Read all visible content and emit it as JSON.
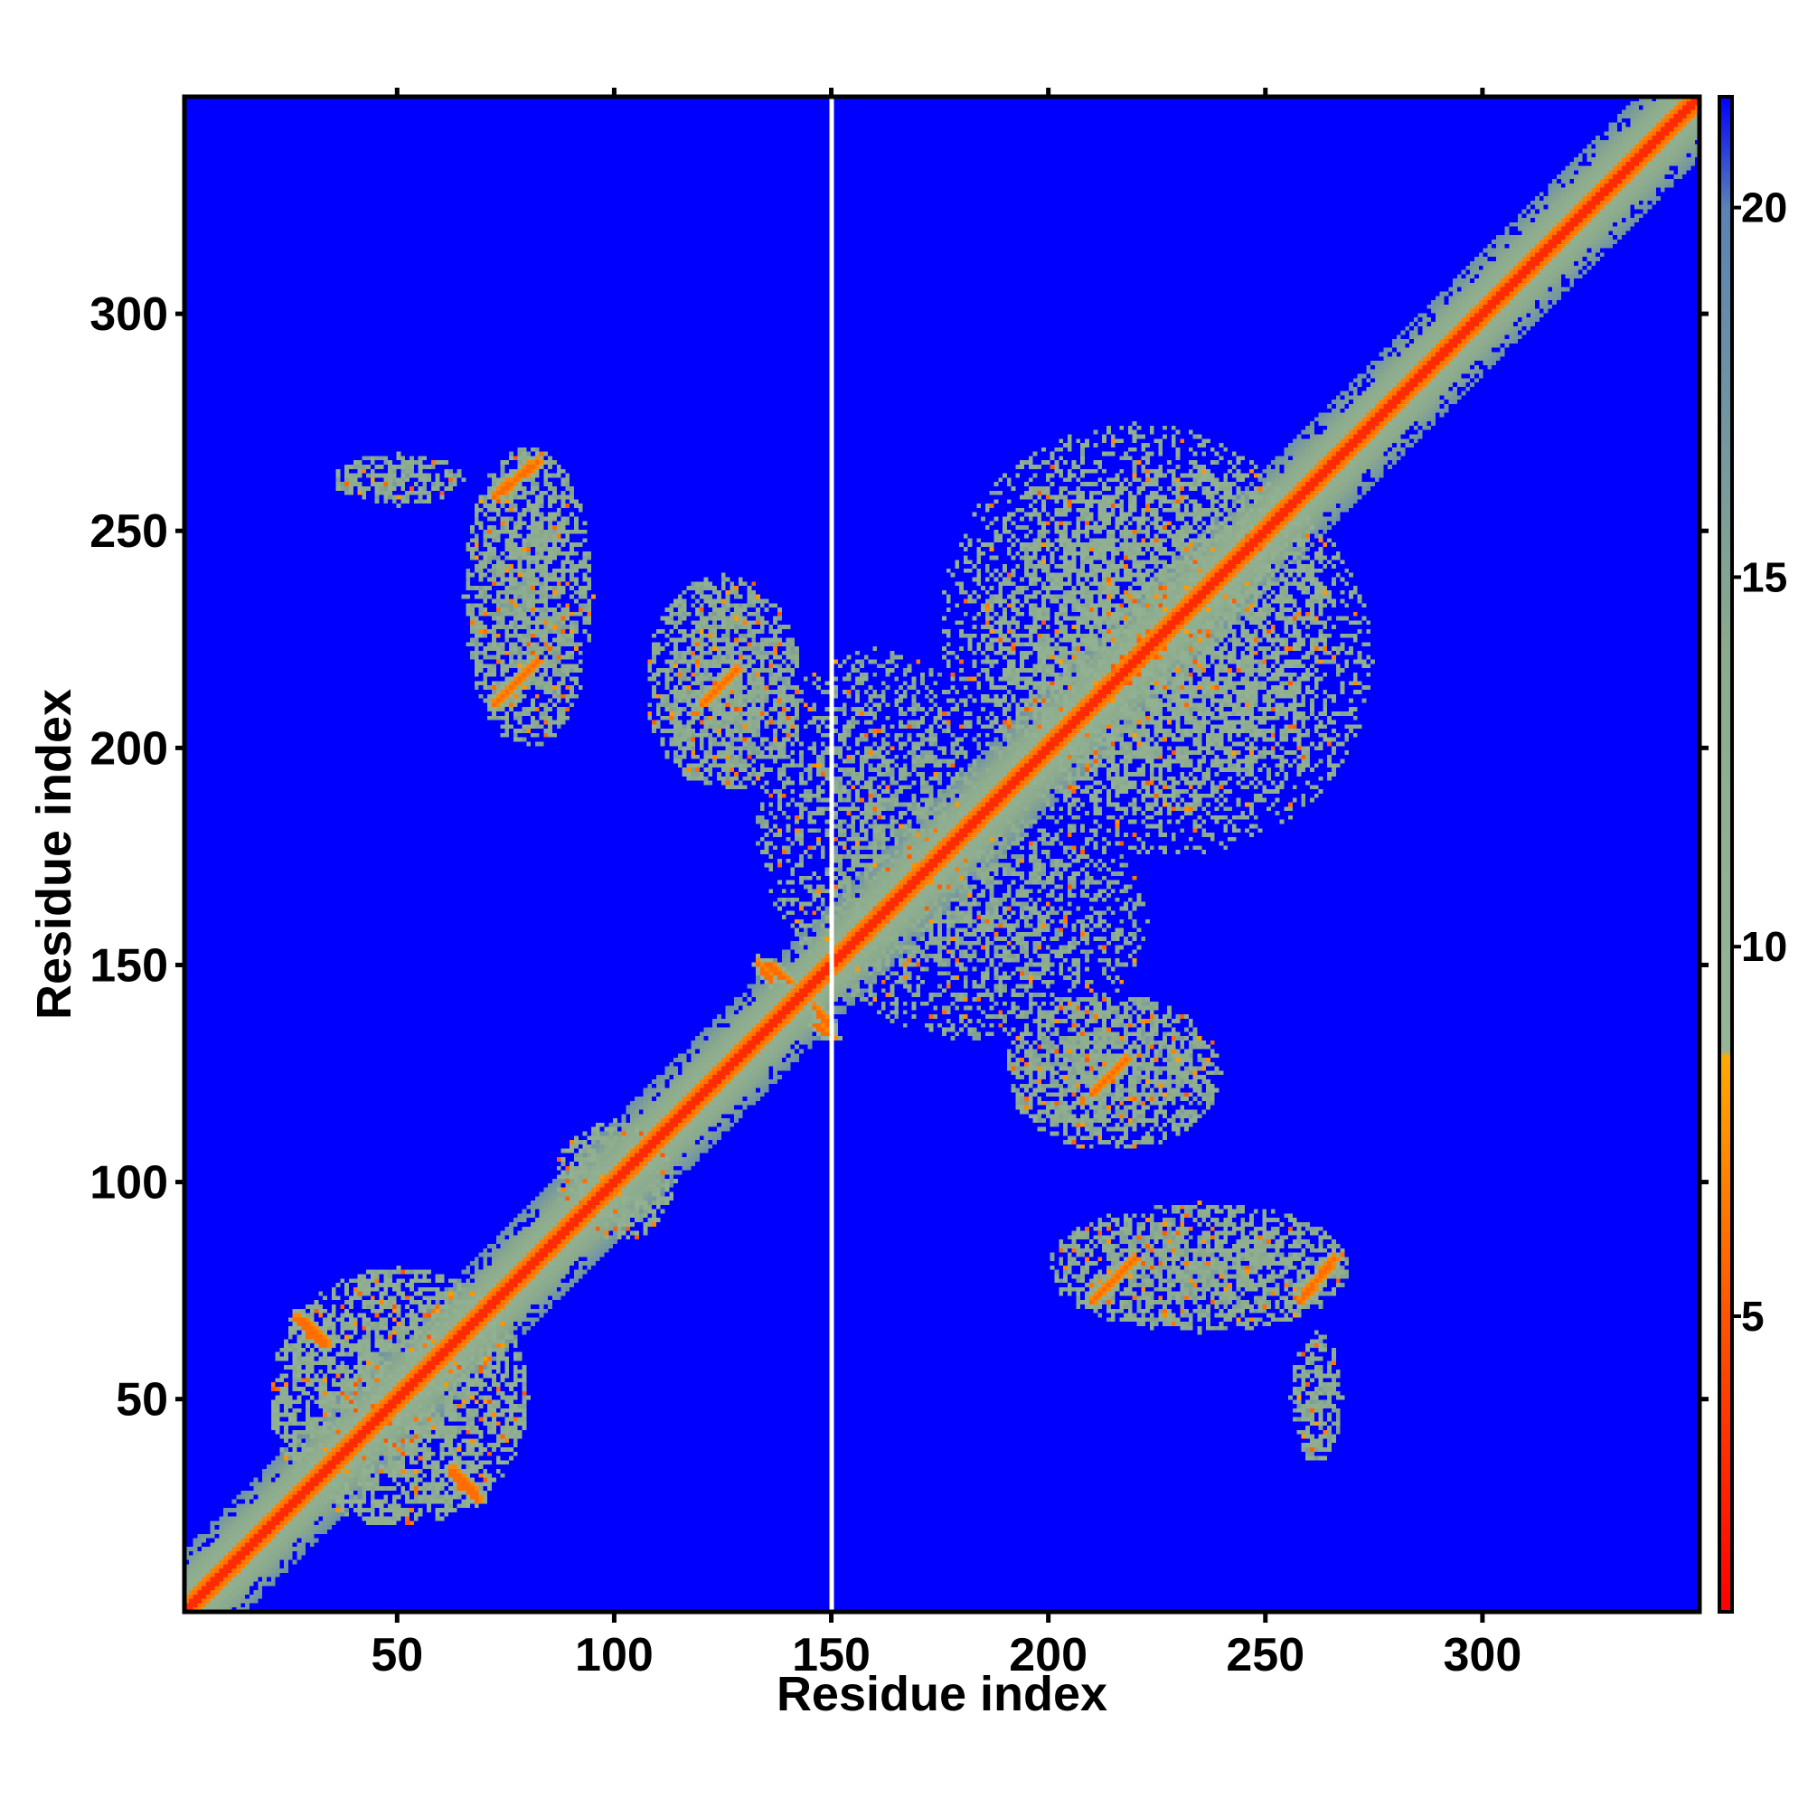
{
  "chart_data": {
    "type": "heatmap",
    "title": "",
    "xlabel": "Residue index",
    "ylabel": "Residue index",
    "xlim": [
      1,
      350
    ],
    "ylim": [
      1,
      350
    ],
    "xticks": [
      50,
      100,
      150,
      200,
      250,
      300
    ],
    "yticks": [
      50,
      100,
      150,
      200,
      250,
      300
    ],
    "colorbar": {
      "range": [
        1,
        21.5
      ],
      "ticks": [
        5,
        10,
        15,
        20
      ],
      "stops": [
        {
          "value": 1,
          "color": "#ff0000"
        },
        {
          "value": 5,
          "color": "#ff5500"
        },
        {
          "value": 8.5,
          "color": "#ffaa00"
        },
        {
          "value": 8.6,
          "color": "#96b496"
        },
        {
          "value": 14,
          "color": "#8caa8c"
        },
        {
          "value": 20,
          "color": "#5a82b4"
        },
        {
          "value": 21.5,
          "color": "#0000ff"
        }
      ]
    },
    "background_color": "#0000ff",
    "features": [
      {
        "type": "diagonal",
        "from": 1,
        "to": 350,
        "value": 3.8
      },
      {
        "type": "blob",
        "x": 50,
        "y": 50,
        "rx": 30,
        "ry": 30,
        "value": 12
      },
      {
        "type": "blob",
        "x": 100,
        "y": 100,
        "rx": 14,
        "ry": 14,
        "value": 12
      },
      {
        "type": "blob",
        "x": 160,
        "y": 185,
        "rx": 28,
        "ry": 38,
        "value": 13
      },
      {
        "type": "blob",
        "x": 230,
        "y": 220,
        "rx": 45,
        "ry": 45,
        "value": 12
      },
      {
        "type": "blob",
        "x": 215,
        "y": 125,
        "rx": 25,
        "ry": 18,
        "value": 13
      },
      {
        "type": "blob",
        "x": 235,
        "y": 80,
        "rx": 35,
        "ry": 15,
        "value": 13
      },
      {
        "type": "blob",
        "x": 80,
        "y": 235,
        "rx": 15,
        "ry": 35,
        "value": 13
      },
      {
        "type": "blob",
        "x": 125,
        "y": 215,
        "rx": 18,
        "ry": 25,
        "value": 13
      },
      {
        "type": "blob",
        "x": 50,
        "y": 262,
        "rx": 15,
        "ry": 6,
        "value": 13
      },
      {
        "type": "blob",
        "x": 262,
        "y": 50,
        "rx": 6,
        "ry": 15,
        "value": 13
      },
      {
        "type": "strand",
        "x1": 72,
        "y1": 258,
        "x2": 82,
        "y2": 266,
        "value": 6
      },
      {
        "type": "strand",
        "x1": 72,
        "y1": 210,
        "x2": 82,
        "y2": 220,
        "value": 6
      },
      {
        "type": "strand",
        "x1": 120,
        "y1": 210,
        "x2": 128,
        "y2": 218,
        "value": 6
      },
      {
        "type": "strand",
        "x1": 210,
        "y1": 72,
        "x2": 220,
        "y2": 82,
        "value": 6
      },
      {
        "type": "strand",
        "x1": 210,
        "y1": 120,
        "x2": 218,
        "y2": 128,
        "value": 6
      },
      {
        "type": "strand",
        "x1": 258,
        "y1": 72,
        "x2": 266,
        "y2": 82,
        "value": 6
      },
      {
        "type": "strand",
        "x1": 27,
        "y1": 68,
        "x2": 33,
        "y2": 62,
        "value": 6
      },
      {
        "type": "strand",
        "x1": 62,
        "y1": 32,
        "x2": 68,
        "y2": 26,
        "value": 6
      },
      {
        "type": "strand",
        "x1": 135,
        "y1": 150,
        "x2": 140,
        "y2": 146,
        "value": 6
      },
      {
        "type": "strand",
        "x1": 146,
        "y1": 136,
        "x2": 150,
        "y2": 133,
        "value": 6
      }
    ],
    "missing_column": 150
  }
}
